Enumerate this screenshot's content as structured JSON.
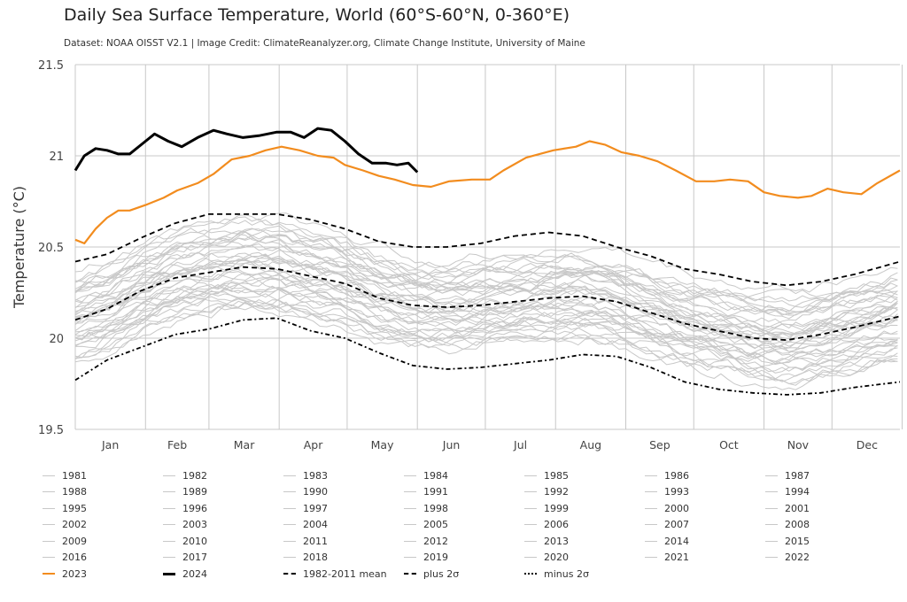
{
  "title": "Daily Sea Surface Temperature, World (60°S-60°N, 0-360°E)",
  "subtitle": "Dataset: NOAA OISST V2.1 | Image Credit: ClimateReanalyzer.org, Climate Change Institute, University of Maine",
  "colors": {
    "grid": "#c8c8c8",
    "background_year": "#c8c8c8",
    "y2023": "#f28c1e",
    "y2024": "#000000",
    "stats": "#000000"
  },
  "chart_data": {
    "type": "line",
    "title": "Daily Sea Surface Temperature, World (60°S-60°N, 0-360°E)",
    "ylabel": "Temperature (°C)",
    "xlabel": "",
    "ylim": [
      19.5,
      21.5
    ],
    "yticks": [
      "19.5",
      "20",
      "20.5",
      "21",
      "21.5"
    ],
    "yticks_values": [
      19.5,
      20.0,
      20.5,
      21.0,
      21.5
    ],
    "months": [
      "Jan",
      "Feb",
      "Mar",
      "Apr",
      "May",
      "Jun",
      "Jul",
      "Aug",
      "Sep",
      "Oct",
      "Nov",
      "Dec"
    ],
    "x_unit": "day of year",
    "grid": true,
    "legend_position": "bottom",
    "background_years": [
      "1981",
      "1982",
      "1983",
      "1984",
      "1985",
      "1986",
      "1987",
      "1988",
      "1989",
      "1990",
      "1991",
      "1992",
      "1993",
      "1994",
      "1995",
      "1996",
      "1997",
      "1998",
      "1999",
      "2000",
      "2001",
      "2002",
      "2003",
      "2004",
      "2005",
      "2006",
      "2007",
      "2008",
      "2009",
      "2010",
      "2011",
      "2012",
      "2013",
      "2014",
      "2015",
      "2016",
      "2017",
      "2018",
      "2019",
      "2020",
      "2021",
      "2022"
    ],
    "series": [
      {
        "name": "2023",
        "color": "#f28c1e",
        "style": "solid",
        "x": [
          1,
          5,
          10,
          15,
          20,
          25,
          32,
          40,
          46,
          55,
          62,
          70,
          78,
          85,
          92,
          100,
          108,
          115,
          120,
          128,
          135,
          142,
          150,
          158,
          166,
          176,
          184,
          190,
          200,
          212,
          222,
          228,
          235,
          242,
          250,
          258,
          266,
          275,
          283,
          290,
          298,
          305,
          312,
          320,
          326,
          333,
          340,
          348,
          355,
          365
        ],
        "y": [
          20.54,
          20.52,
          20.6,
          20.66,
          20.7,
          20.7,
          20.73,
          20.77,
          20.81,
          20.85,
          20.9,
          20.98,
          21.0,
          21.03,
          21.05,
          21.03,
          21.0,
          20.99,
          20.95,
          20.92,
          20.89,
          20.87,
          20.84,
          20.83,
          20.86,
          20.87,
          20.87,
          20.92,
          20.99,
          21.03,
          21.05,
          21.08,
          21.06,
          21.02,
          21.0,
          20.97,
          20.92,
          20.86,
          20.86,
          20.87,
          20.86,
          20.8,
          20.78,
          20.77,
          20.78,
          20.82,
          20.8,
          20.79,
          20.85,
          20.92
        ]
      },
      {
        "name": "2024",
        "color": "#000000",
        "style": "solid-bold",
        "x": [
          1,
          5,
          10,
          15,
          20,
          25,
          32,
          36,
          42,
          48,
          55,
          62,
          68,
          75,
          82,
          90,
          96,
          102,
          108,
          114,
          120,
          126,
          132,
          138,
          143,
          148,
          152
        ],
        "y": [
          20.92,
          21.0,
          21.04,
          21.03,
          21.01,
          21.01,
          21.08,
          21.12,
          21.08,
          21.05,
          21.1,
          21.14,
          21.12,
          21.1,
          21.11,
          21.13,
          21.13,
          21.1,
          21.15,
          21.14,
          21.08,
          21.01,
          20.96,
          20.96,
          20.95,
          20.96,
          20.91
        ]
      },
      {
        "name": "1982-2011 mean",
        "color": "#000000",
        "style": "dashed",
        "x": [
          1,
          15,
          30,
          45,
          60,
          75,
          90,
          105,
          120,
          135,
          150,
          165,
          180,
          195,
          210,
          225,
          240,
          255,
          270,
          285,
          300,
          315,
          330,
          345,
          365
        ],
        "y": [
          20.1,
          20.16,
          20.26,
          20.33,
          20.36,
          20.39,
          20.38,
          20.34,
          20.3,
          20.22,
          20.18,
          20.17,
          20.18,
          20.2,
          20.22,
          20.23,
          20.2,
          20.14,
          20.08,
          20.04,
          20.0,
          19.99,
          20.02,
          20.06,
          20.12
        ]
      },
      {
        "name": "plus 2σ",
        "color": "#000000",
        "style": "dashed",
        "x": [
          1,
          15,
          30,
          45,
          60,
          75,
          90,
          105,
          120,
          135,
          150,
          165,
          180,
          195,
          210,
          225,
          240,
          255,
          270,
          285,
          300,
          315,
          330,
          345,
          365
        ],
        "y": [
          20.42,
          20.46,
          20.55,
          20.63,
          20.68,
          20.68,
          20.68,
          20.65,
          20.6,
          20.53,
          20.5,
          20.5,
          20.52,
          20.56,
          20.58,
          20.56,
          20.5,
          20.45,
          20.38,
          20.35,
          20.31,
          20.29,
          20.31,
          20.35,
          20.42
        ]
      },
      {
        "name": "minus 2σ",
        "color": "#000000",
        "style": "dotted",
        "x": [
          1,
          15,
          30,
          45,
          60,
          75,
          90,
          105,
          120,
          135,
          150,
          165,
          180,
          195,
          210,
          225,
          240,
          255,
          270,
          285,
          300,
          315,
          330,
          345,
          365
        ],
        "y": [
          19.77,
          19.88,
          19.95,
          20.02,
          20.05,
          20.1,
          20.11,
          20.04,
          20.0,
          19.92,
          19.85,
          19.83,
          19.84,
          19.86,
          19.88,
          19.91,
          19.9,
          19.84,
          19.76,
          19.72,
          19.7,
          19.69,
          19.7,
          19.73,
          19.76
        ]
      }
    ]
  },
  "legend": {
    "items": [
      {
        "label": "1981",
        "style": "gray"
      },
      {
        "label": "1982",
        "style": "gray"
      },
      {
        "label": "1983",
        "style": "gray"
      },
      {
        "label": "1984",
        "style": "gray"
      },
      {
        "label": "1985",
        "style": "gray"
      },
      {
        "label": "1986",
        "style": "gray"
      },
      {
        "label": "1987",
        "style": "gray"
      },
      {
        "label": "1988",
        "style": "gray"
      },
      {
        "label": "1989",
        "style": "gray"
      },
      {
        "label": "1990",
        "style": "gray"
      },
      {
        "label": "1991",
        "style": "gray"
      },
      {
        "label": "1992",
        "style": "gray"
      },
      {
        "label": "1993",
        "style": "gray"
      },
      {
        "label": "1994",
        "style": "gray"
      },
      {
        "label": "1995",
        "style": "gray"
      },
      {
        "label": "1996",
        "style": "gray"
      },
      {
        "label": "1997",
        "style": "gray"
      },
      {
        "label": "1998",
        "style": "gray"
      },
      {
        "label": "1999",
        "style": "gray"
      },
      {
        "label": "2000",
        "style": "gray"
      },
      {
        "label": "2001",
        "style": "gray"
      },
      {
        "label": "2002",
        "style": "gray"
      },
      {
        "label": "2003",
        "style": "gray"
      },
      {
        "label": "2004",
        "style": "gray"
      },
      {
        "label": "2005",
        "style": "gray"
      },
      {
        "label": "2006",
        "style": "gray"
      },
      {
        "label": "2007",
        "style": "gray"
      },
      {
        "label": "2008",
        "style": "gray"
      },
      {
        "label": "2009",
        "style": "gray"
      },
      {
        "label": "2010",
        "style": "gray"
      },
      {
        "label": "2011",
        "style": "gray"
      },
      {
        "label": "2012",
        "style": "gray"
      },
      {
        "label": "2013",
        "style": "gray"
      },
      {
        "label": "2014",
        "style": "gray"
      },
      {
        "label": "2015",
        "style": "gray"
      },
      {
        "label": "2016",
        "style": "gray"
      },
      {
        "label": "2017",
        "style": "gray"
      },
      {
        "label": "2018",
        "style": "gray"
      },
      {
        "label": "2019",
        "style": "gray"
      },
      {
        "label": "2020",
        "style": "gray"
      },
      {
        "label": "2021",
        "style": "gray"
      },
      {
        "label": "2022",
        "style": "gray"
      },
      {
        "label": "2023",
        "style": "orange"
      },
      {
        "label": "2024",
        "style": "black"
      },
      {
        "label": "1982-2011 mean",
        "style": "dashed"
      },
      {
        "label": "plus 2σ",
        "style": "dashed"
      },
      {
        "label": "minus 2σ",
        "style": "dotted"
      }
    ]
  }
}
